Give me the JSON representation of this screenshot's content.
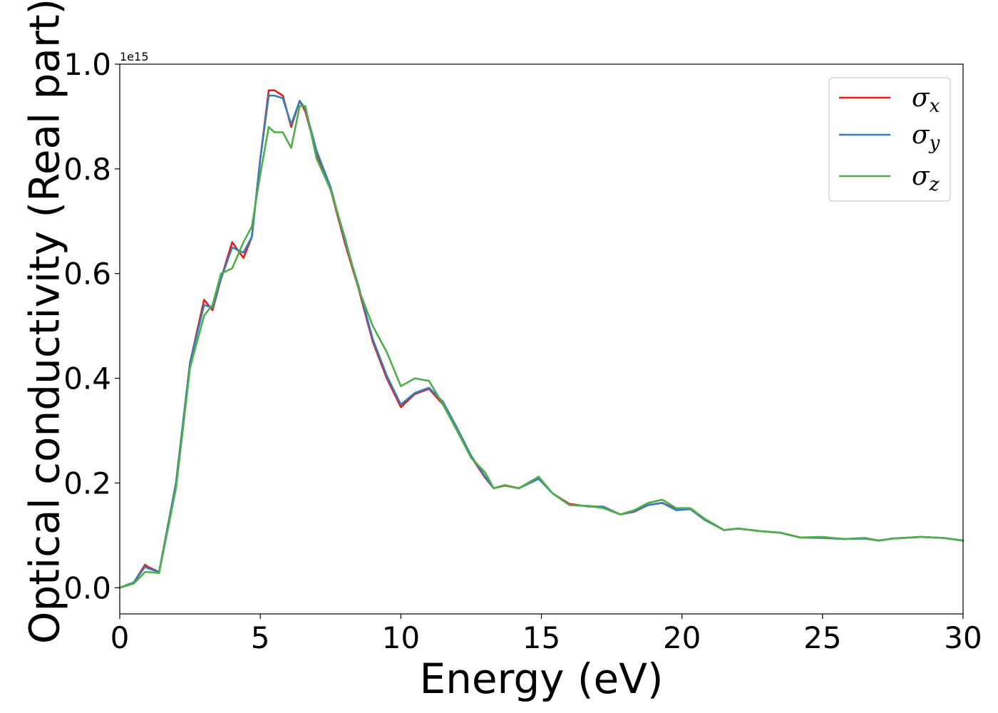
{
  "chart_data": {
    "type": "line",
    "xlabel": "Energy (eV)",
    "ylabel": "Optical conductivity (Real part)",
    "y_offset_label": "1e15",
    "xlim": [
      0,
      30
    ],
    "ylim": [
      -0.05,
      1.0
    ],
    "x_ticks": [
      0,
      5,
      10,
      15,
      20,
      25,
      30
    ],
    "y_ticks": [
      0.0,
      0.2,
      0.4,
      0.6,
      0.8,
      1.0
    ],
    "x_tick_labels": [
      "0",
      "5",
      "10",
      "15",
      "20",
      "25",
      "30"
    ],
    "y_tick_labels": [
      "0.0",
      "0.2",
      "0.4",
      "0.6",
      "0.8",
      "1.0"
    ],
    "grid": false,
    "legend_position": "top-right",
    "series": [
      {
        "name": "σx",
        "symbol": "σ",
        "subscript": "x",
        "color": "#e41a1c",
        "x": [
          0,
          0.5,
          0.9,
          1.0,
          1.4,
          2.0,
          2.5,
          3.0,
          3.3,
          3.6,
          4.0,
          4.4,
          4.7,
          5.0,
          5.3,
          5.5,
          5.8,
          6.1,
          6.4,
          6.6,
          7.0,
          7.5,
          8.0,
          8.5,
          9.0,
          9.5,
          10.0,
          10.5,
          11.0,
          11.5,
          12.0,
          12.5,
          13.0,
          13.3,
          13.7,
          14.2,
          14.9,
          15.4,
          16.0,
          16.7,
          17.2,
          17.8,
          18.3,
          18.8,
          19.3,
          19.8,
          20.3,
          20.8,
          21.5,
          22.0,
          22.8,
          23.5,
          24.2,
          25.0,
          25.8,
          26.5,
          27.0,
          27.5,
          28.5,
          29.3,
          30.0
        ],
        "y": [
          0.0,
          0.01,
          0.044,
          0.04,
          0.03,
          0.2,
          0.43,
          0.55,
          0.53,
          0.59,
          0.66,
          0.63,
          0.67,
          0.82,
          0.95,
          0.95,
          0.94,
          0.88,
          0.93,
          0.91,
          0.83,
          0.76,
          0.66,
          0.57,
          0.47,
          0.4,
          0.345,
          0.37,
          0.38,
          0.35,
          0.3,
          0.25,
          0.21,
          0.19,
          0.195,
          0.19,
          0.21,
          0.18,
          0.16,
          0.155,
          0.155,
          0.14,
          0.145,
          0.158,
          0.162,
          0.15,
          0.15,
          0.13,
          0.11,
          0.113,
          0.108,
          0.105,
          0.096,
          0.095,
          0.093,
          0.095,
          0.09,
          0.094,
          0.097,
          0.095,
          0.09
        ]
      },
      {
        "name": "σy",
        "symbol": "σ",
        "subscript": "y",
        "color": "#377eb8",
        "x": [
          0,
          0.5,
          0.9,
          1.0,
          1.4,
          2.0,
          2.5,
          3.0,
          3.3,
          3.6,
          4.0,
          4.4,
          4.7,
          5.0,
          5.3,
          5.5,
          5.8,
          6.1,
          6.4,
          6.6,
          7.0,
          7.5,
          8.0,
          8.5,
          9.0,
          9.5,
          10.0,
          10.5,
          11.0,
          11.5,
          12.0,
          12.5,
          13.0,
          13.3,
          13.7,
          14.2,
          14.9,
          15.4,
          16.0,
          16.7,
          17.2,
          17.8,
          18.3,
          18.8,
          19.3,
          19.8,
          20.3,
          20.8,
          21.5,
          22.0,
          22.8,
          23.5,
          24.2,
          25.0,
          25.8,
          26.5,
          27.0,
          27.5,
          28.5,
          29.3,
          30.0
        ],
        "y": [
          0.0,
          0.01,
          0.04,
          0.037,
          0.03,
          0.2,
          0.43,
          0.54,
          0.535,
          0.59,
          0.65,
          0.64,
          0.67,
          0.82,
          0.94,
          0.94,
          0.935,
          0.885,
          0.93,
          0.915,
          0.835,
          0.765,
          0.665,
          0.575,
          0.475,
          0.405,
          0.35,
          0.372,
          0.382,
          0.355,
          0.305,
          0.252,
          0.212,
          0.19,
          0.196,
          0.19,
          0.208,
          0.18,
          0.158,
          0.156,
          0.154,
          0.14,
          0.146,
          0.158,
          0.162,
          0.148,
          0.15,
          0.13,
          0.11,
          0.113,
          0.108,
          0.105,
          0.096,
          0.095,
          0.093,
          0.094,
          0.09,
          0.094,
          0.097,
          0.095,
          0.09
        ]
      },
      {
        "name": "σz",
        "symbol": "σ",
        "subscript": "z",
        "color": "#4daf4a",
        "x": [
          0,
          0.5,
          0.9,
          1.0,
          1.4,
          2.0,
          2.5,
          3.0,
          3.3,
          3.6,
          4.0,
          4.4,
          4.7,
          5.0,
          5.3,
          5.5,
          5.8,
          6.1,
          6.4,
          6.6,
          7.0,
          7.5,
          8.0,
          8.5,
          9.0,
          9.5,
          10.0,
          10.5,
          11.0,
          11.5,
          12.0,
          12.5,
          13.0,
          13.3,
          13.7,
          14.2,
          14.9,
          15.4,
          16.0,
          16.7,
          17.2,
          17.8,
          18.3,
          18.8,
          19.3,
          19.8,
          20.3,
          20.8,
          21.5,
          22.0,
          22.8,
          23.5,
          24.2,
          25.0,
          25.8,
          26.5,
          27.0,
          27.5,
          28.5,
          29.3,
          30.0
        ],
        "y": [
          0.0,
          0.008,
          0.03,
          0.03,
          0.028,
          0.19,
          0.42,
          0.52,
          0.54,
          0.6,
          0.61,
          0.66,
          0.69,
          0.79,
          0.88,
          0.87,
          0.87,
          0.84,
          0.92,
          0.92,
          0.82,
          0.76,
          0.67,
          0.57,
          0.5,
          0.45,
          0.385,
          0.4,
          0.395,
          0.35,
          0.3,
          0.248,
          0.22,
          0.19,
          0.196,
          0.19,
          0.212,
          0.18,
          0.158,
          0.156,
          0.152,
          0.14,
          0.148,
          0.162,
          0.168,
          0.152,
          0.152,
          0.132,
          0.11,
          0.113,
          0.108,
          0.105,
          0.096,
          0.097,
          0.093,
          0.095,
          0.09,
          0.094,
          0.097,
          0.095,
          0.09
        ]
      }
    ]
  }
}
